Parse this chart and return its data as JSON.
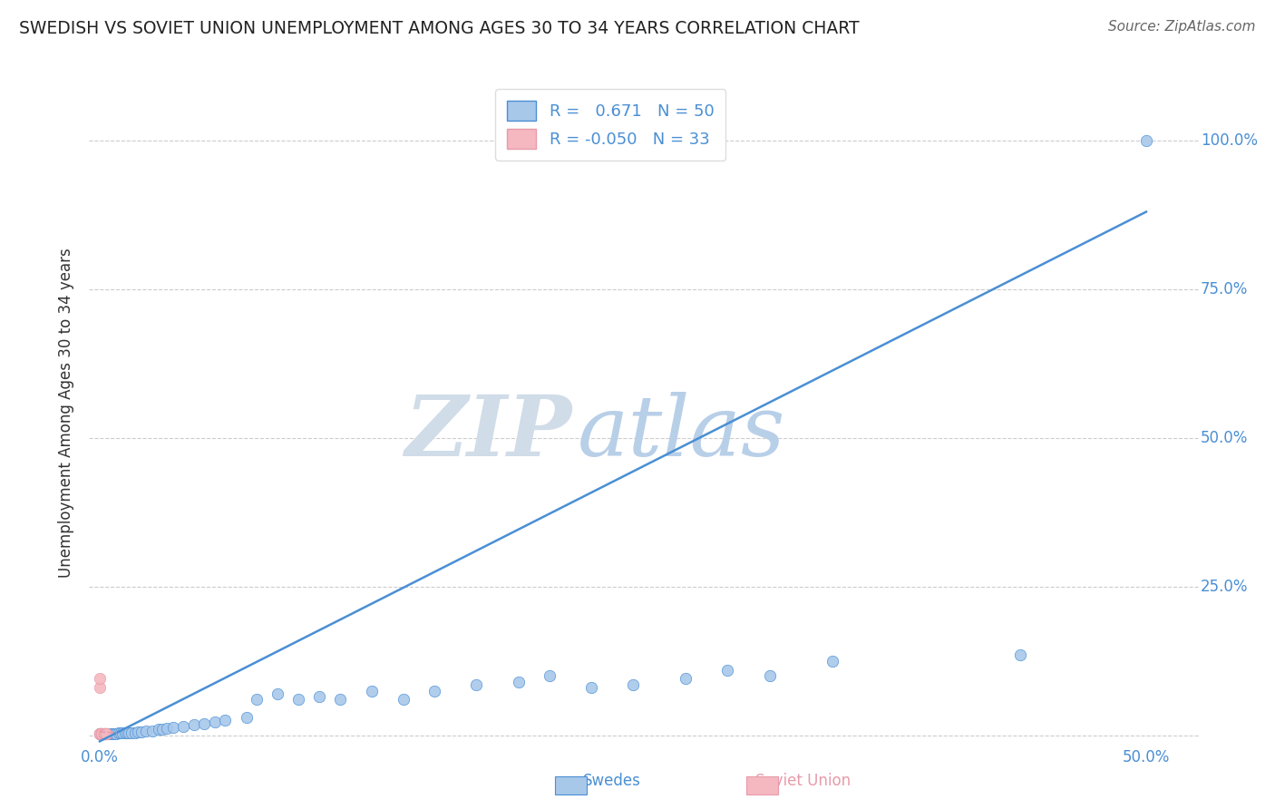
{
  "title": "SWEDISH VS SOVIET UNION UNEMPLOYMENT AMONG AGES 30 TO 34 YEARS CORRELATION CHART",
  "source": "Source: ZipAtlas.com",
  "ylabel_label": "Unemployment Among Ages 30 to 34 years",
  "x_lim": [
    -0.005,
    0.525
  ],
  "y_lim": [
    -0.015,
    1.1
  ],
  "blue_R": 0.671,
  "blue_N": 50,
  "pink_R": -0.05,
  "pink_N": 33,
  "blue_color": "#a8c8ea",
  "pink_color": "#f5b8c0",
  "blue_line_color": "#4a8fd4",
  "pink_line_color": "#e89aaa",
  "watermark_zip_color": "#d0dce8",
  "watermark_atlas_color": "#b8cfe8",
  "background_color": "#ffffff",
  "grid_color": "#cccccc",
  "blue_scatter_x": [
    0.0,
    0.001,
    0.002,
    0.003,
    0.004,
    0.005,
    0.006,
    0.007,
    0.008,
    0.009,
    0.01,
    0.011,
    0.012,
    0.013,
    0.014,
    0.015,
    0.017,
    0.018,
    0.02,
    0.022,
    0.025,
    0.028,
    0.03,
    0.032,
    0.035,
    0.04,
    0.045,
    0.05,
    0.055,
    0.06,
    0.07,
    0.075,
    0.085,
    0.095,
    0.105,
    0.115,
    0.13,
    0.145,
    0.16,
    0.18,
    0.2,
    0.215,
    0.235,
    0.255,
    0.28,
    0.3,
    0.32,
    0.35,
    0.44,
    0.5
  ],
  "blue_scatter_y": [
    0.003,
    0.003,
    0.003,
    0.003,
    0.003,
    0.003,
    0.003,
    0.003,
    0.003,
    0.004,
    0.004,
    0.004,
    0.004,
    0.005,
    0.005,
    0.005,
    0.005,
    0.006,
    0.006,
    0.007,
    0.008,
    0.01,
    0.01,
    0.012,
    0.013,
    0.015,
    0.018,
    0.02,
    0.022,
    0.025,
    0.03,
    0.06,
    0.07,
    0.06,
    0.065,
    0.06,
    0.075,
    0.06,
    0.075,
    0.085,
    0.09,
    0.1,
    0.08,
    0.085,
    0.095,
    0.11,
    0.1,
    0.125,
    0.135,
    1.0
  ],
  "pink_scatter_x": [
    0.0,
    0.0,
    0.0,
    0.0,
    0.0,
    0.0,
    0.0,
    0.0,
    0.0,
    0.0,
    0.001,
    0.001,
    0.001,
    0.001,
    0.001,
    0.001,
    0.001,
    0.001,
    0.001,
    0.001,
    0.002,
    0.002,
    0.002,
    0.002,
    0.002,
    0.002,
    0.002,
    0.003,
    0.003,
    0.003,
    0.003,
    0.003,
    0.003
  ],
  "pink_scatter_y": [
    0.003,
    0.003,
    0.003,
    0.003,
    0.003,
    0.003,
    0.003,
    0.003,
    0.08,
    0.095,
    0.003,
    0.003,
    0.003,
    0.003,
    0.003,
    0.003,
    0.003,
    0.003,
    0.003,
    0.003,
    0.003,
    0.003,
    0.003,
    0.003,
    0.003,
    0.003,
    0.003,
    0.003,
    0.003,
    0.003,
    0.003,
    0.003,
    0.003
  ],
  "blue_line_x": [
    0.0,
    0.5
  ],
  "blue_line_y": [
    -0.01,
    0.88
  ],
  "pink_line_x": [
    0.0,
    0.008
  ],
  "pink_line_y": [
    0.006,
    0.004
  ],
  "marker_size": 80,
  "title_fontsize": 13.5,
  "label_fontsize": 12,
  "tick_fontsize": 12,
  "source_fontsize": 11
}
